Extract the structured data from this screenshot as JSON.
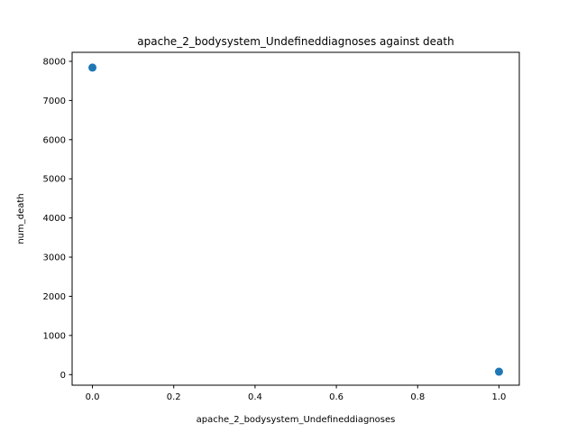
{
  "chart_data": {
    "type": "scatter",
    "title": "apache_2_bodysystem_Undefineddiagnoses against death",
    "xlabel": "apache_2_bodysystem_Undefineddiagnoses",
    "ylabel": "num_death",
    "xlim": [
      -0.05,
      1.05
    ],
    "ylim": [
      -270,
      8230
    ],
    "xticks": [
      0.0,
      0.2,
      0.4,
      0.6,
      0.8,
      1.0
    ],
    "xtick_labels": [
      "0.0",
      "0.2",
      "0.4",
      "0.6",
      "0.8",
      "1.0"
    ],
    "yticks": [
      0,
      1000,
      2000,
      3000,
      4000,
      5000,
      6000,
      7000,
      8000
    ],
    "ytick_labels": [
      "0",
      "1000",
      "2000",
      "3000",
      "4000",
      "5000",
      "6000",
      "7000",
      "8000"
    ],
    "grid": false,
    "marker_color": "#1f77b4",
    "points": [
      {
        "x": 0.0,
        "y": 7840
      },
      {
        "x": 1.0,
        "y": 75
      }
    ]
  }
}
